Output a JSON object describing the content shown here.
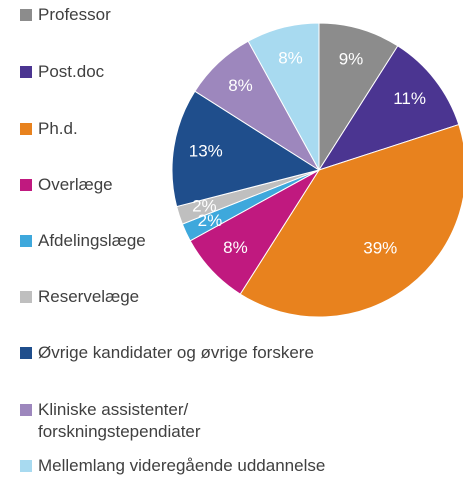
{
  "chart_data": {
    "type": "pie",
    "categories": [
      "Professor",
      "Post.doc",
      "Ph.d.",
      "Overlæge",
      "Afdelingslæge",
      "Reservelæge",
      "Øvrige kandidater og øvrige forskere",
      "Kliniske assistenter/\nforskningstependiater",
      "Mellemlang videregående uddannelse"
    ],
    "values": [
      9,
      11,
      39,
      8,
      2,
      2,
      13,
      8,
      8
    ],
    "value_labels": [
      "9%",
      "11%",
      "39%",
      "8%",
      "2%",
      "2%",
      "13%",
      "8%",
      "8%"
    ],
    "colors": [
      "#8c8c8c",
      "#4b3591",
      "#e8821e",
      "#c0197f",
      "#3ea8dc",
      "#bfbfbf",
      "#1f4e8c",
      "#9d87bd",
      "#a8daf0"
    ]
  }
}
